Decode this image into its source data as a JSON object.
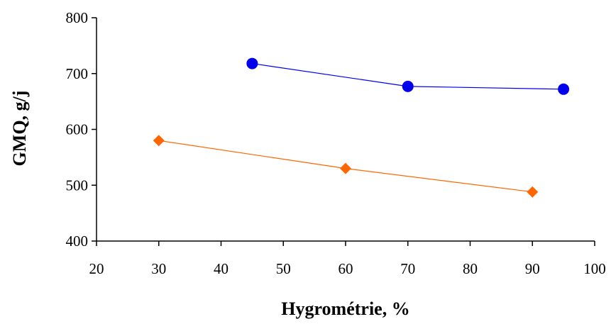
{
  "chart_data": {
    "type": "scatter",
    "title": "",
    "xlabel": "Hygrométrie, %",
    "ylabel": "GMQ, g/j",
    "xlim": [
      20,
      100
    ],
    "ylim": [
      400,
      800
    ],
    "x_ticks": [
      20,
      30,
      40,
      50,
      60,
      70,
      80,
      90,
      100
    ],
    "y_ticks": [
      400,
      500,
      600,
      700,
      800
    ],
    "grid": false,
    "legend": "none",
    "series": [
      {
        "marker": "circle",
        "color": "#0000ee",
        "x": [
          45,
          70,
          95
        ],
        "y": [
          718,
          677,
          672
        ]
      },
      {
        "marker": "diamond",
        "color": "#ff6600",
        "x": [
          30,
          60,
          90
        ],
        "y": [
          580,
          530,
          488
        ]
      }
    ]
  }
}
